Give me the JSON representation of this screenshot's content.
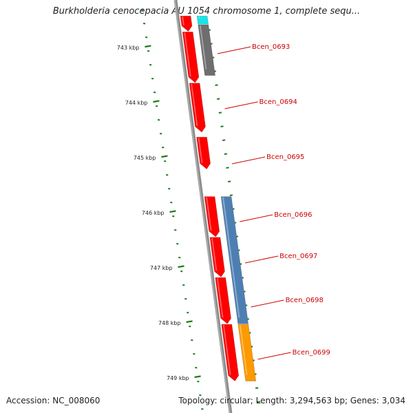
{
  "title": "Burkholderia cenocepacia AU 1054 chromosome 1, complete sequ...",
  "footer": {
    "accession": "Accession: NC_008060",
    "summary": "Topology: circular; Length: 3,294,563 bp; Genes: 3,034"
  },
  "colors": {
    "backbone": "#888888",
    "tick": "#1b7d1b",
    "gene_label": "#cc0000",
    "cds": "#ff0000",
    "cyan_feature": "#1ae3e8",
    "gray_feature": "#6e6e6e",
    "blue_feature": "#4d7fb3",
    "orange_feature": "#ff9900"
  },
  "ticks": [
    {
      "label": "743 kbp",
      "kbp": 743
    },
    {
      "label": "744 kbp",
      "kbp": 744
    },
    {
      "label": "745 kbp",
      "kbp": 745
    },
    {
      "label": "746 kbp",
      "kbp": 746
    },
    {
      "label": "747 kbp",
      "kbp": 747
    },
    {
      "label": "748 kbp",
      "kbp": 748
    },
    {
      "label": "749 kbp",
      "kbp": 749
    }
  ],
  "features": [
    {
      "track": 0,
      "start_kbp": 742.44,
      "end_kbp": 742.72,
      "color": "cds",
      "arrow": true
    },
    {
      "track": 0,
      "start_kbp": 742.73,
      "end_kbp": 743.65,
      "color": "cds",
      "arrow": true
    },
    {
      "track": 0,
      "start_kbp": 743.66,
      "end_kbp": 744.55,
      "color": "cds",
      "arrow": true
    },
    {
      "track": 0,
      "start_kbp": 744.64,
      "end_kbp": 745.22,
      "color": "cds",
      "arrow": true
    },
    {
      "track": 0,
      "start_kbp": 745.72,
      "end_kbp": 746.45,
      "color": "cds",
      "arrow": true
    },
    {
      "track": 0,
      "start_kbp": 746.46,
      "end_kbp": 747.18,
      "color": "cds",
      "arrow": true
    },
    {
      "track": 0,
      "start_kbp": 747.19,
      "end_kbp": 748.03,
      "color": "cds",
      "arrow": true
    },
    {
      "track": 0,
      "start_kbp": 748.04,
      "end_kbp": 749.07,
      "color": "cds",
      "arrow": true
    },
    {
      "track": 1,
      "start_kbp": 742.44,
      "end_kbp": 742.59,
      "color": "cyan_feature",
      "arrow": false
    },
    {
      "track": 1,
      "start_kbp": 742.6,
      "end_kbp": 743.52,
      "color": "gray_feature",
      "arrow": false
    },
    {
      "track": 1,
      "start_kbp": 745.72,
      "end_kbp": 748.03,
      "color": "blue_feature",
      "arrow": false
    },
    {
      "track": 1,
      "start_kbp": 748.04,
      "end_kbp": 749.07,
      "color": "orange_feature",
      "arrow": false
    }
  ],
  "gene_labels": [
    {
      "name": "Bcen_0693",
      "kbp": 743.0
    },
    {
      "name": "Bcen_0694",
      "kbp": 744.0
    },
    {
      "name": "Bcen_0695",
      "kbp": 745.0
    },
    {
      "name": "Bcen_0696",
      "kbp": 746.05
    },
    {
      "name": "Bcen_0697",
      "kbp": 746.8
    },
    {
      "name": "Bcen_0698",
      "kbp": 747.6
    },
    {
      "name": "Bcen_0699",
      "kbp": 748.55
    }
  ]
}
